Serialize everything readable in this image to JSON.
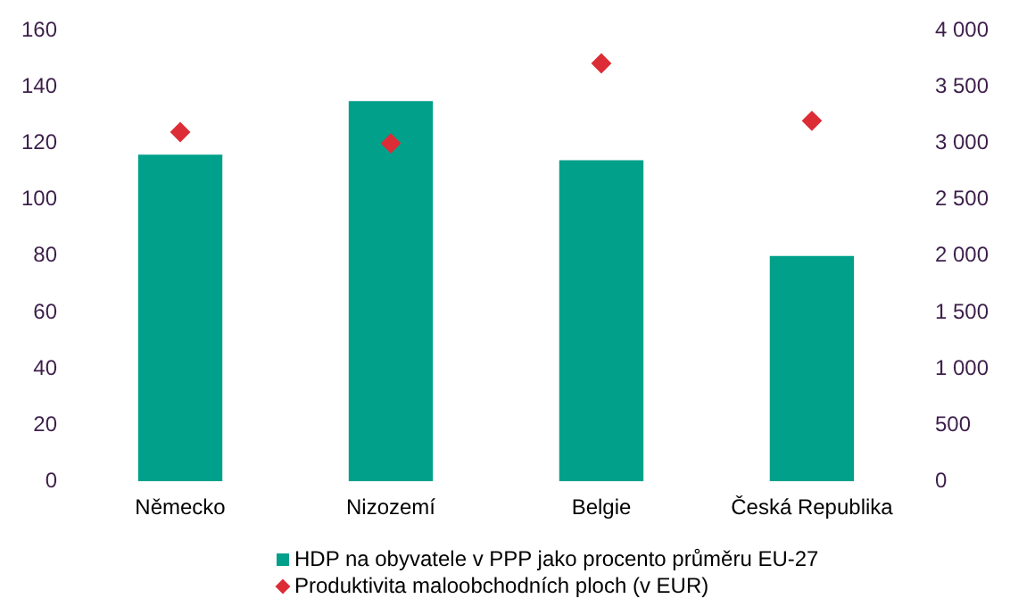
{
  "chart_data": {
    "type": "bar",
    "categories": [
      "Německo",
      "Nizozemí",
      "Belgie",
      "Česká Republika"
    ],
    "series": [
      {
        "name": "HDP na obyvatele v PPP jako procento průměru EU-27",
        "color": "#00a08a",
        "values": [
          116,
          135,
          114,
          80
        ]
      },
      {
        "name": "Produktivita maloobchodních ploch (v EUR)",
        "type": "scatter",
        "axis": "y2",
        "color": "#dc2d37",
        "marker": "diamond",
        "values": [
          3100,
          3000,
          3710,
          3200
        ]
      }
    ],
    "ylim": [
      0,
      160
    ],
    "yticks": [
      0,
      20,
      40,
      60,
      80,
      100,
      120,
      140,
      160
    ],
    "y2lim": [
      0,
      4000
    ],
    "y2ticks": [
      0,
      500,
      {
        "value": 1000,
        "label": "1 000"
      },
      {
        "value": 1500,
        "label": "1 500"
      },
      {
        "value": 2000,
        "label": "2 000"
      },
      {
        "value": 2500,
        "label": "2 500"
      },
      {
        "value": 3000,
        "label": "3 000"
      },
      {
        "value": 3500,
        "label": "3 500"
      },
      {
        "value": 4000,
        "label": "4 000"
      }
    ],
    "grid": false,
    "legend": "bottom"
  }
}
